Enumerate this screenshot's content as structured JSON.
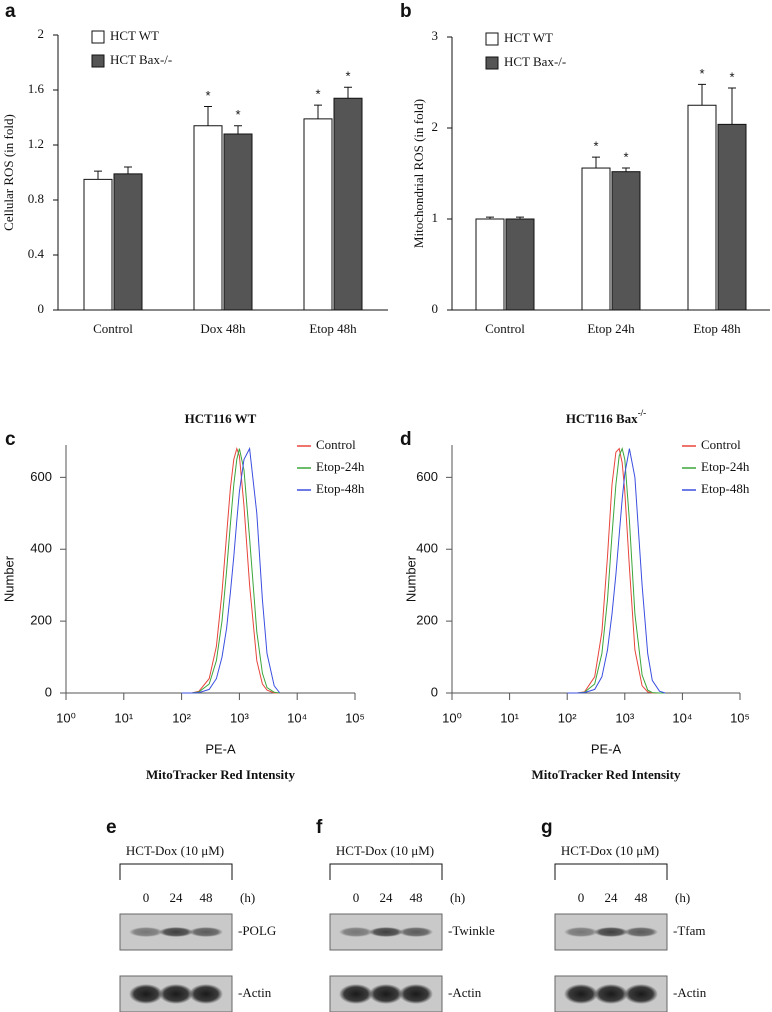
{
  "chart_data": [
    {
      "type": "bar",
      "panel": "a",
      "ylabel": "Cellular ROS (in fold)",
      "categories": [
        "Control",
        "Dox 48h",
        "Etop 48h"
      ],
      "series": [
        {
          "name": "HCT WT",
          "color": "#ffffff",
          "values": [
            0.95,
            1.34,
            1.39
          ],
          "errors": [
            0.06,
            0.14,
            0.1
          ],
          "significance": [
            null,
            "*",
            "*"
          ]
        },
        {
          "name": "HCT Bax-/-",
          "color": "#555555",
          "values": [
            0.99,
            1.28,
            1.54
          ],
          "errors": [
            0.05,
            0.06,
            0.08
          ],
          "significance": [
            null,
            "*",
            "*"
          ]
        }
      ],
      "ylim": [
        0,
        2
      ],
      "yticks": [
        0,
        0.4,
        0.8,
        1.2,
        1.6,
        2
      ],
      "legend": "top-left"
    },
    {
      "type": "bar",
      "panel": "b",
      "ylabel": "Mitochondrial ROS (in fold)",
      "categories": [
        "Control",
        "Etop 24h",
        "Etop 48h"
      ],
      "series": [
        {
          "name": "HCT WT",
          "color": "#ffffff",
          "values": [
            1.0,
            1.56,
            2.25
          ],
          "errors": [
            0.02,
            0.12,
            0.23
          ],
          "significance": [
            null,
            "*",
            "*"
          ]
        },
        {
          "name": "HCT Bax-/-",
          "color": "#555555",
          "values": [
            1.0,
            1.52,
            2.04
          ],
          "errors": [
            0.02,
            0.04,
            0.4
          ],
          "significance": [
            null,
            "*",
            "*"
          ]
        }
      ],
      "ylim": [
        0,
        3
      ],
      "yticks": [
        0,
        1,
        2,
        3
      ],
      "legend": "top-left"
    },
    {
      "type": "line",
      "panel": "c",
      "title": "HCT116 WT",
      "xlabel": "PE-A",
      "xlabel2": "MitoTracker Red Intensity",
      "ylabel": "Number",
      "x": [
        100,
        150,
        200,
        300,
        400,
        500,
        600,
        700,
        800,
        900,
        1000,
        1200,
        1500,
        2000,
        2500,
        3000,
        4000,
        5000
      ],
      "series": [
        {
          "name": "Control",
          "color": "#e8453c",
          "values": [
            0,
            0,
            5,
            40,
            130,
            280,
            440,
            570,
            650,
            680,
            660,
            520,
            300,
            90,
            25,
            8,
            0,
            0
          ]
        },
        {
          "name": "Etop-24h",
          "color": "#3aa63a",
          "values": [
            0,
            0,
            3,
            25,
            90,
            200,
            340,
            470,
            580,
            650,
            680,
            620,
            430,
            170,
            55,
            15,
            2,
            0
          ]
        },
        {
          "name": "Etop-48h",
          "color": "#3b4fe0",
          "values": [
            0,
            0,
            1,
            10,
            40,
            100,
            180,
            280,
            380,
            480,
            560,
            650,
            680,
            500,
            260,
            110,
            20,
            0
          ]
        }
      ],
      "xlim": [
        1,
        100000
      ],
      "xscale": "log",
      "xticks": [
        {
          "value": 1,
          "label": "10⁰"
        },
        {
          "value": 10,
          "label": "10¹"
        },
        {
          "value": 100,
          "label": "10²"
        },
        {
          "value": 1000,
          "label": "10³"
        },
        {
          "value": 10000,
          "label": "10⁴"
        },
        {
          "value": 100000,
          "label": "10⁵"
        }
      ],
      "ylim": [
        0,
        690
      ],
      "yticks": [
        0,
        200,
        400,
        600
      ],
      "legend": "top-right"
    },
    {
      "type": "line",
      "panel": "d",
      "title": "HCT116 Bax",
      "title_sup": "-/-",
      "xlabel": "PE-A",
      "xlabel2": "MitoTracker Red Intensity",
      "ylabel": "Number",
      "x": [
        100,
        150,
        200,
        300,
        400,
        500,
        600,
        700,
        800,
        900,
        1000,
        1200,
        1500,
        2000,
        2500,
        3000,
        4000,
        5000
      ],
      "series": [
        {
          "name": "Control",
          "color": "#e8453c",
          "values": [
            0,
            0,
            3,
            45,
            170,
            380,
            580,
            670,
            680,
            640,
            560,
            350,
            120,
            20,
            3,
            0,
            0,
            0
          ]
        },
        {
          "name": "Etop-24h",
          "color": "#3aa63a",
          "values": [
            0,
            0,
            2,
            25,
            110,
            260,
            440,
            580,
            660,
            680,
            650,
            480,
            220,
            50,
            8,
            1,
            0,
            0
          ]
        },
        {
          "name": "Etop-48h",
          "color": "#3b4fe0",
          "values": [
            0,
            0,
            1,
            10,
            45,
            120,
            220,
            330,
            440,
            540,
            610,
            680,
            600,
            300,
            110,
            35,
            5,
            0
          ]
        }
      ],
      "xlim": [
        1,
        100000
      ],
      "xscale": "log",
      "xticks": [
        {
          "value": 1,
          "label": "10⁰"
        },
        {
          "value": 10,
          "label": "10¹"
        },
        {
          "value": 100,
          "label": "10²"
        },
        {
          "value": 1000,
          "label": "10³"
        },
        {
          "value": 10000,
          "label": "10⁴"
        },
        {
          "value": 100000,
          "label": "10⁵"
        }
      ],
      "ylim": [
        0,
        690
      ],
      "yticks": [
        0,
        200,
        400,
        600
      ],
      "legend": "top-right"
    }
  ],
  "blots": [
    {
      "panel": "e",
      "treatment": "HCT-Dox (10 μM)",
      "timepoints": [
        0,
        24,
        48
      ],
      "unit": "(h)",
      "proteins": [
        "-POLG",
        "-Actin"
      ]
    },
    {
      "panel": "f",
      "treatment": "HCT-Dox (10 μM)",
      "timepoints": [
        0,
        24,
        48
      ],
      "unit": "(h)",
      "proteins": [
        "-Twinkle",
        "-Actin"
      ]
    },
    {
      "panel": "g",
      "treatment": "HCT-Dox (10 μM)",
      "timepoints": [
        0,
        24,
        48
      ],
      "unit": "(h)",
      "proteins": [
        "-Tfam",
        "-Actin"
      ]
    }
  ]
}
